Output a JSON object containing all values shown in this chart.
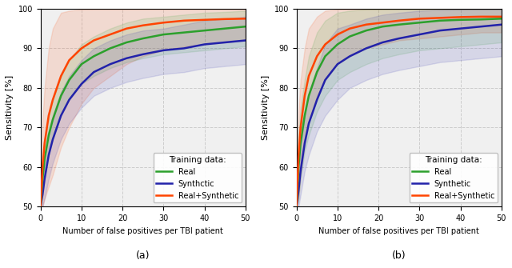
{
  "subplot_a": {
    "title": "(a)",
    "xlabel": "Number of false positives per TBI patient",
    "ylabel": "Sensitivity [%]",
    "xlim": [
      0,
      50
    ],
    "ylim": [
      50,
      100
    ],
    "yticks": [
      50,
      60,
      70,
      80,
      90,
      100
    ],
    "xticks": [
      0,
      10,
      20,
      30,
      40,
      50
    ],
    "x_pts": [
      0,
      0.5,
      1,
      2,
      3,
      5,
      7,
      10,
      13,
      17,
      21,
      25,
      30,
      35,
      40,
      45,
      50
    ],
    "real_mean": [
      50,
      57,
      62,
      68,
      72,
      78,
      82,
      86,
      88,
      90,
      91.5,
      92.5,
      93.5,
      94,
      94.5,
      95,
      95.5
    ],
    "real_lower": [
      50,
      53,
      57,
      63,
      67,
      73,
      77,
      81,
      83,
      85,
      86.5,
      87.5,
      88.5,
      89,
      89.5,
      90,
      90.5
    ],
    "real_upper": [
      50,
      61,
      67,
      73,
      77,
      83,
      87,
      91,
      93,
      95,
      96.5,
      97.5,
      98,
      98.5,
      99,
      99.2,
      99.5
    ],
    "synth_mean": [
      50,
      53,
      57,
      63,
      67,
      73,
      77,
      81,
      84,
      86,
      87.5,
      88.5,
      89.5,
      90,
      91,
      91.5,
      92
    ],
    "synth_lower": [
      50,
      50,
      52,
      57,
      61,
      67,
      71,
      75,
      78,
      80,
      81.5,
      82.5,
      83.5,
      84,
      85,
      85.5,
      86
    ],
    "synth_upper": [
      50,
      56,
      62,
      69,
      73,
      79,
      83,
      87,
      90,
      92,
      93.5,
      94.5,
      95,
      96,
      97,
      97.5,
      98
    ],
    "real_synth_mean": [
      50,
      60,
      66,
      73,
      77,
      83,
      87,
      90,
      92,
      93.5,
      95,
      95.8,
      96.5,
      97,
      97.2,
      97.4,
      97.5
    ],
    "real_synth_lower": [
      50,
      50,
      52,
      55,
      58,
      65,
      70,
      76,
      80,
      83,
      86,
      88,
      89.5,
      90.5,
      91,
      91.5,
      92
    ],
    "real_synth_upper": [
      50,
      72,
      80,
      90,
      95,
      99,
      99.5,
      99.8,
      99.9,
      99.9,
      99.9,
      99.9,
      99.9,
      99.9,
      99.9,
      99.9,
      99.9
    ],
    "legend_title": "Training data:",
    "legend_labels": [
      "Real",
      "Synthctic",
      "Real+Synthetic"
    ]
  },
  "subplot_b": {
    "title": "(b)",
    "xlabel": "Number of false positives per TBI patient",
    "ylabel": "Sensitivity [%]",
    "xlim": [
      0,
      50
    ],
    "ylim": [
      50,
      100
    ],
    "yticks": [
      50,
      60,
      70,
      80,
      90,
      100
    ],
    "xticks": [
      0,
      10,
      20,
      30,
      40,
      50
    ],
    "x_pts": [
      0,
      0.5,
      1,
      2,
      3,
      5,
      7,
      10,
      13,
      17,
      21,
      25,
      30,
      35,
      40,
      45,
      50
    ],
    "real_mean": [
      50,
      60,
      66,
      73,
      78,
      84,
      88,
      91,
      93,
      94.5,
      95.5,
      96,
      96.5,
      97,
      97.2,
      97.3,
      97.5
    ],
    "real_lower": [
      50,
      52,
      57,
      64,
      68,
      74,
      78,
      82,
      84,
      86,
      87.5,
      88.5,
      89.5,
      90,
      90.5,
      91,
      91.5
    ],
    "real_upper": [
      50,
      68,
      75,
      82,
      88,
      94,
      97,
      99,
      99.5,
      99.8,
      99.9,
      99.9,
      99.9,
      99.9,
      99.9,
      99.9,
      99.9
    ],
    "synth_mean": [
      50,
      54,
      59,
      66,
      71,
      77,
      82,
      86,
      88,
      90,
      91.5,
      92.5,
      93.5,
      94.5,
      95,
      95.5,
      96
    ],
    "synth_lower": [
      50,
      50,
      53,
      59,
      63,
      69,
      73,
      77,
      80,
      82,
      83.5,
      84.5,
      85.5,
      86.5,
      87,
      87.5,
      88
    ],
    "synth_upper": [
      50,
      58,
      65,
      73,
      79,
      85,
      91,
      95,
      96,
      97.5,
      98.5,
      99,
      99.5,
      99.7,
      99.8,
      99.9,
      99.9
    ],
    "real_synth_mean": [
      50,
      63,
      70,
      78,
      83,
      88,
      91,
      93.5,
      95,
      96,
      96.5,
      97,
      97.5,
      97.7,
      97.9,
      98,
      98
    ],
    "real_synth_lower": [
      50,
      52,
      58,
      66,
      71,
      78,
      82,
      86,
      88,
      90,
      91,
      92,
      92.5,
      93,
      93.5,
      94,
      94
    ],
    "real_synth_upper": [
      50,
      74,
      82,
      90,
      95,
      98,
      99.5,
      99.8,
      99.9,
      99.9,
      99.9,
      99.9,
      99.9,
      99.9,
      99.9,
      99.9,
      99.9
    ],
    "legend_title": "Training data:",
    "legend_labels": [
      "Real",
      "Synthetic",
      "Real+Synthetic"
    ]
  },
  "color_real": "#2ca02c",
  "color_synth": "#2222aa",
  "color_real_synth": "#ff4400",
  "fill_alpha_rs": 0.13,
  "fill_alpha_real": 0.12,
  "fill_alpha_synth": 0.12,
  "line_width": 1.8,
  "bg_color": "#f0f0f0",
  "fig_bg": "#ffffff"
}
